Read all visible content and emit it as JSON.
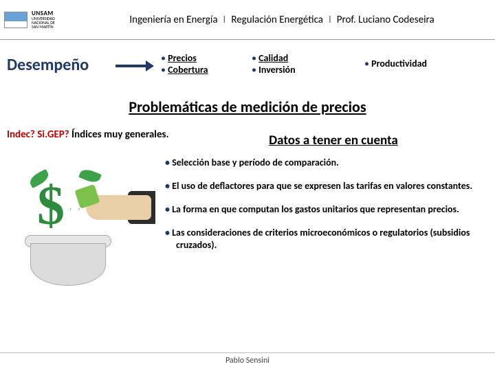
{
  "colors": {
    "accent": "#203864",
    "red": "#c00000",
    "green": "#2e8b3d"
  },
  "header": {
    "logo_code": "UNSAM",
    "logo_sub1": "UNIVERSIDAD",
    "logo_sub2": "NACIONAL DE",
    "logo_sub3": "SAN MARTÍN",
    "course": "Ingeniería en Energía",
    "sep": "I",
    "subject": "Regulación Energética",
    "prof": "Prof. Luciano Codeseira"
  },
  "desempeno": {
    "label": "Desempeño",
    "col1": [
      "Precios",
      "Cobertura"
    ],
    "col2": [
      "Calidad",
      "Inversión"
    ],
    "col3": [
      "Productividad"
    ]
  },
  "subtitle": "Problemáticas de medición de precios",
  "indec": {
    "q1": "Indec?",
    "q2": "Si.GEP?",
    "rest": "Índices muy generales."
  },
  "datos_title": "Datos a tener en cuenta",
  "points": [
    "Selección base y período de comparación.",
    "El uso de deflactores para que se expresen las tarifas en valores constantes.",
    "La forma en que computan los gastos unitarios que representan precios.",
    "Las consideraciones de criterios microeconómicos o regulatorios (subsidios cruzados)."
  ],
  "footer": "Pablo Sensini",
  "image_alt": "money-plant-watering"
}
